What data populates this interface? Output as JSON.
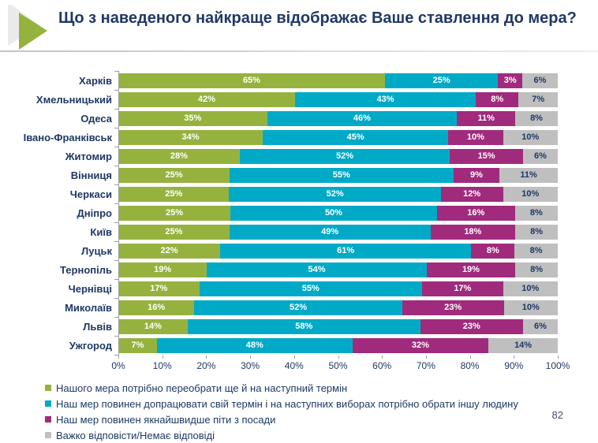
{
  "title": "Що з наведеного найкраще відображає Ваше ставлення до мера?",
  "page_number": "82",
  "colors": {
    "title_text": "#1F3864",
    "axis": "#9E9E9E",
    "accent_green": "#96B23E",
    "accent_cyan": "#00AAC7",
    "accent_magenta": "#A02B7D",
    "accent_gray": "#BFBFBF"
  },
  "chart_data": {
    "type": "bar",
    "stacked": true,
    "orientation": "horizontal",
    "value_suffix": "%",
    "legend_position": "bottom",
    "grid": false,
    "categories": [
      "Харків",
      "Хмельницький",
      "Одеса",
      "Івано-Франківськ",
      "Житомир",
      "Вінниця",
      "Черкаси",
      "Дніпро",
      "Київ",
      "Луцьк",
      "Тернопіль",
      "Чернівці",
      "Миколаїв",
      "Львів",
      "Ужгород"
    ],
    "series": [
      {
        "name": "Нашого мера потрібно переобрати ще й на наступний термін",
        "color": "#96B23E",
        "label_color": "#FFFFFF",
        "values": [
          65,
          42,
          35,
          34,
          28,
          25,
          25,
          25,
          25,
          22,
          19,
          17,
          16,
          14,
          7
        ]
      },
      {
        "name": "Наш мер повинен допрацювати свій термін і на наступних виборах потрібно обрати іншу людину",
        "color": "#00AAC7",
        "label_color": "#FFFFFF",
        "values": [
          25,
          43,
          46,
          45,
          52,
          55,
          52,
          50,
          49,
          61,
          54,
          55,
          52,
          58,
          48
        ]
      },
      {
        "name": "Наш мер повинен якнайшвидше піти з посади",
        "color": "#A02B7D",
        "label_color": "#FFFFFF",
        "values": [
          3,
          8,
          11,
          10,
          15,
          9,
          12,
          16,
          18,
          8,
          19,
          17,
          23,
          23,
          32
        ]
      },
      {
        "name": "Важко відповісти/Немає відповіді",
        "color": "#BFBFBF",
        "label_color": "#1F3864",
        "values": [
          6,
          7,
          8,
          10,
          6,
          11,
          10,
          8,
          8,
          8,
          8,
          10,
          10,
          6,
          14
        ]
      }
    ],
    "x_axis": {
      "min": 0,
      "max": 100,
      "tick_step": 10,
      "tick_labels": [
        "0%",
        "10%",
        "20%",
        "30%",
        "40%",
        "50%",
        "60%",
        "70%",
        "80%",
        "90%",
        "100%"
      ]
    }
  }
}
